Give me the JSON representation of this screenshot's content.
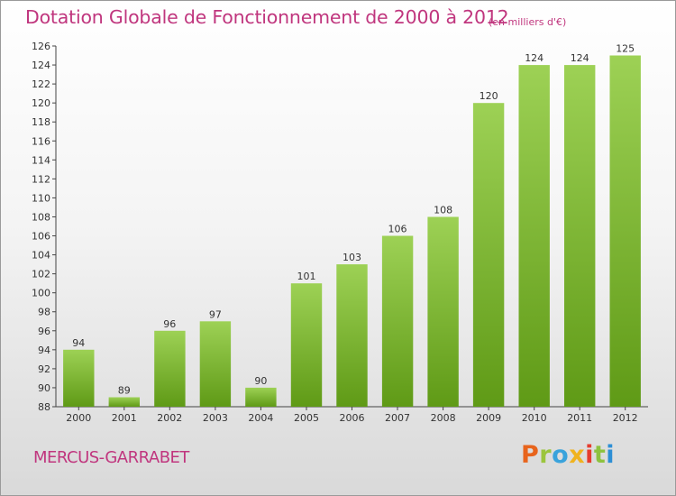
{
  "title": "Dotation Globale de Fonctionnement de 2000 à 2012",
  "unit": "(en milliers d'€)",
  "commune": "MERCUS-GARRABET",
  "logo": "Proxiti",
  "colors": {
    "title": "#c0367e",
    "bar_top": "#9dd155",
    "bar_bottom": "#5f9a16"
  },
  "chart_data": {
    "type": "bar",
    "title": "Dotation Globale de Fonctionnement de 2000 à 2012",
    "subtitle": "(en milliers d'€)",
    "xlabel": "",
    "ylabel": "",
    "categories": [
      "2000",
      "2001",
      "2002",
      "2003",
      "2004",
      "2005",
      "2006",
      "2007",
      "2008",
      "2009",
      "2010",
      "2011",
      "2012"
    ],
    "values": [
      94,
      89,
      96,
      97,
      90,
      101,
      103,
      106,
      108,
      120,
      124,
      124,
      125
    ],
    "ylim": [
      88,
      126
    ],
    "yticks": [
      88,
      90,
      92,
      94,
      96,
      98,
      100,
      102,
      104,
      106,
      108,
      110,
      112,
      114,
      116,
      118,
      120,
      122,
      124,
      126
    ],
    "grid": false,
    "data_labels": true
  }
}
